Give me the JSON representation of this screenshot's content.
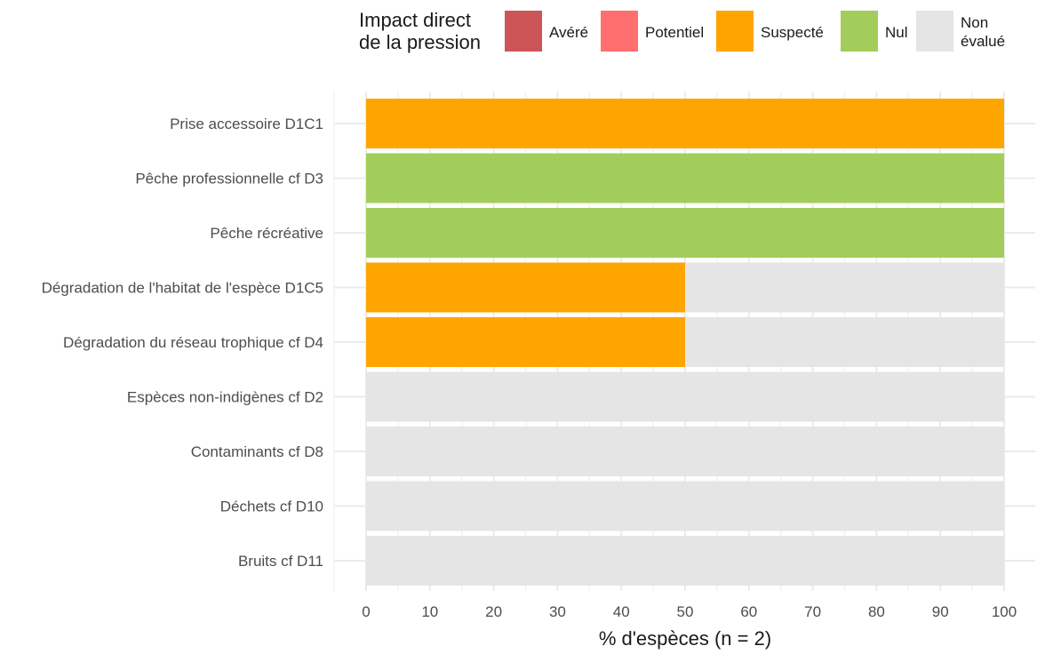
{
  "chart_data": {
    "type": "bar",
    "orientation": "horizontal",
    "stacked": true,
    "categories": [
      "Prise accessoire D1C1",
      "Pêche professionnelle cf D3",
      "Pêche récréative",
      "Dégradation de l'habitat de l'espèce D1C5",
      "Dégradation du réseau trophique cf D4",
      "Espèces non-indigènes cf D2",
      "Contaminants cf D8",
      "Déchets cf D10",
      "Bruits cf D11"
    ],
    "series": [
      {
        "name": "Avéré",
        "color": "#cd5558",
        "values": [
          0,
          0,
          0,
          0,
          0,
          0,
          0,
          0,
          0
        ]
      },
      {
        "name": "Potentiel",
        "color": "#ff6f6f",
        "values": [
          0,
          0,
          0,
          0,
          0,
          0,
          0,
          0,
          0
        ]
      },
      {
        "name": "Suspecté",
        "color": "#ffa500",
        "values": [
          100,
          0,
          0,
          50,
          50,
          0,
          0,
          0,
          0
        ]
      },
      {
        "name": "Nul",
        "color": "#a2cd5a",
        "values": [
          0,
          100,
          100,
          0,
          0,
          0,
          0,
          0,
          0
        ]
      },
      {
        "name": "Non\névalué",
        "color": "#e5e5e5",
        "values": [
          0,
          0,
          0,
          50,
          50,
          100,
          100,
          100,
          100
        ]
      }
    ],
    "xlabel": "% d'espèces (n = 2)",
    "ylabel": "",
    "xlim": [
      0,
      100
    ],
    "xticks": [
      0,
      10,
      20,
      30,
      40,
      50,
      60,
      70,
      80,
      90,
      100
    ],
    "legend": {
      "title": "Impact direct\nde la pression",
      "position": "top"
    },
    "grid": true
  }
}
